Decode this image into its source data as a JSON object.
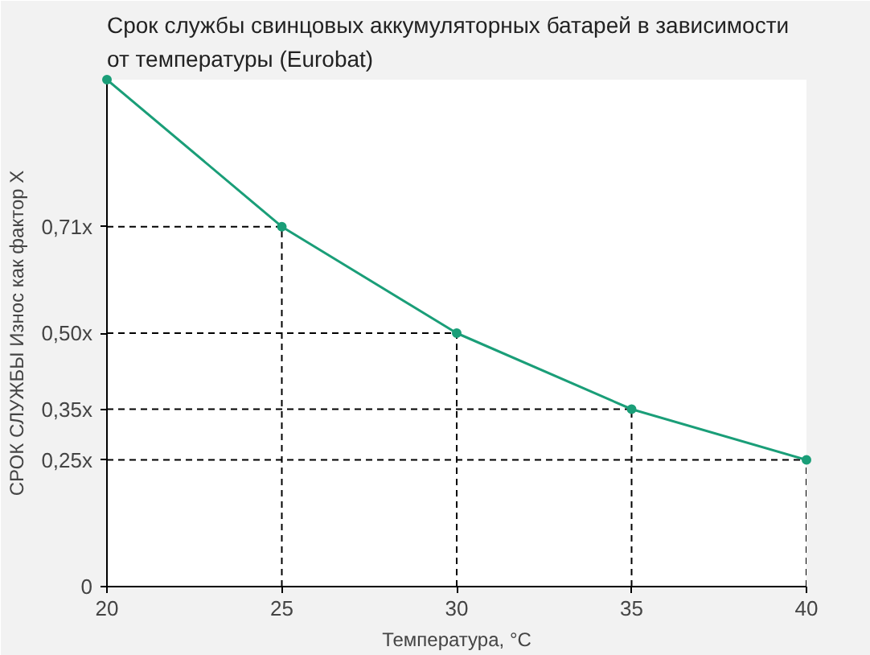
{
  "chart_data": {
    "type": "line",
    "title": "Срок службы свинцовых аккумуляторных батарей в зависимости от температуры (Eurobat)",
    "xlabel": "Температура, °C",
    "ylabel": "СРОК СЛУЖБЫ Износ как фактор X",
    "x": [
      20,
      25,
      30,
      35,
      40
    ],
    "series": [
      {
        "color": "#1a9e78",
        "values": [
          1.0,
          0.71,
          0.5,
          0.35,
          0.25
        ]
      }
    ],
    "xlim": [
      20,
      40
    ],
    "xticks": [
      20,
      25,
      30,
      35,
      40
    ],
    "ylim": [
      0,
      1
    ],
    "yticks": [
      0,
      {
        "value": 0.25,
        "label": "0,25x"
      },
      {
        "value": 0.35,
        "label": "0,35x"
      },
      {
        "value": 0.5,
        "label": "0,50x"
      },
      {
        "value": 0.71,
        "label": "0,71x"
      }
    ],
    "ref_lines": [
      {
        "axis": "y",
        "value": 0.71,
        "color": "#000000",
        "line_style": "dashed"
      },
      {
        "axis": "y",
        "value": 0.5,
        "color": "#000000",
        "line_style": "dashed"
      },
      {
        "axis": "y",
        "value": 0.35,
        "color": "#000000",
        "line_style": "dashed"
      },
      {
        "axis": "y",
        "value": 0.25,
        "color": "#000000",
        "line_style": "dashed"
      },
      {
        "axis": "x",
        "value": 25,
        "color": "#000000",
        "line_style": "dashed"
      },
      {
        "axis": "x",
        "value": 30,
        "color": "#000000",
        "line_style": "dashed"
      },
      {
        "axis": "x",
        "value": 35,
        "color": "#000000",
        "line_style": "dashed"
      },
      {
        "axis": "x",
        "value": 40,
        "color": "#000000",
        "line_style": "dashed"
      }
    ],
    "marker": "circle",
    "line_style": "solid",
    "grid": false
  }
}
